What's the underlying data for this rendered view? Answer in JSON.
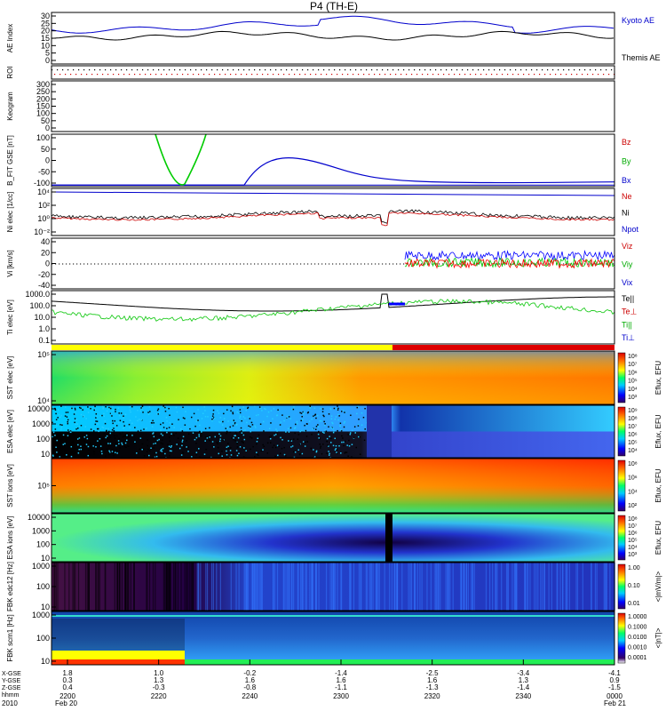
{
  "title": "P4 (TH-E)",
  "year_label": "2010",
  "x_axis": {
    "ticks": [
      "2200",
      "2220",
      "2240",
      "2300",
      "2320",
      "2340",
      "0000"
    ],
    "dates": {
      "first": "Feb 20",
      "last": "Feb 21"
    },
    "row_labels": [
      "X-GSE",
      "Y-GSE",
      "Z-GSE",
      "hhmm"
    ],
    "coords": [
      [
        "1.8",
        "0.3",
        "0.4"
      ],
      [
        "1.0",
        "1.3",
        "-0.3"
      ],
      [
        "-0.2",
        "1.6",
        "-0.8"
      ],
      [
        "-1.4",
        "1.6",
        "-1.1"
      ],
      [
        "-2.5",
        "1.6",
        "-1.3"
      ],
      [
        "-3.4",
        "1.3",
        "-1.4"
      ],
      [
        "-4.1",
        "0.9",
        "-1.5"
      ]
    ]
  },
  "panels": [
    {
      "id": "ae",
      "ylabel": "AE Index",
      "yticks": [
        "30",
        "25",
        "20",
        "15",
        "10",
        "5",
        "0"
      ],
      "legend": [
        {
          "text": "Kyoto AE",
          "color": "#0000cc"
        },
        {
          "text": "Themis AE",
          "color": "#000000"
        }
      ]
    },
    {
      "id": "roi",
      "ylabel": "ROI",
      "yticks": []
    },
    {
      "id": "keogram",
      "ylabel": "Keogram",
      "yticks": [
        "300",
        "250",
        "200",
        "150",
        "100",
        "50",
        "0"
      ]
    },
    {
      "id": "bfit",
      "ylabel": "B_FIT GSE [nT]",
      "yticks": [
        "100",
        "50",
        "0",
        "-50",
        "-100"
      ],
      "legend": [
        {
          "text": "Bz",
          "color": "#cc0000"
        },
        {
          "text": "By",
          "color": "#00aa00"
        },
        {
          "text": "Bx",
          "color": "#0000cc"
        }
      ]
    },
    {
      "id": "ni",
      "ylabel": "Ni elec [1/cc]",
      "yticks": [
        "10⁴",
        "10²",
        "10⁰",
        "10⁻²"
      ],
      "legend": [
        {
          "text": "Ne",
          "color": "#cc0000"
        },
        {
          "text": "Ni",
          "color": "#000000"
        },
        {
          "text": "Npot",
          "color": "#0000cc"
        }
      ]
    },
    {
      "id": "vi",
      "ylabel": "Vi [km/s]",
      "yticks": [
        "40",
        "20",
        "0",
        "-20",
        "-40"
      ],
      "legend": [
        {
          "text": "Viz",
          "color": "#cc0000"
        },
        {
          "text": "Viy",
          "color": "#00aa00"
        },
        {
          "text": "Vix",
          "color": "#0000cc"
        }
      ]
    },
    {
      "id": "ti",
      "ylabel": "Ti elec [eV]",
      "yticks": [
        "1000.0",
        "100.0",
        "10.0",
        "1.0",
        "0.1"
      ],
      "legend": [
        {
          "text": "Te||",
          "color": "#000000"
        },
        {
          "text": "Te⊥",
          "color": "#cc0000"
        },
        {
          "text": "Ti||",
          "color": "#00aa00"
        },
        {
          "text": "Ti⊥",
          "color": "#0000cc"
        }
      ]
    },
    {
      "id": "sst_e",
      "ylabel": "SST elec [eV]",
      "yticks": [
        "10⁵",
        "10⁴"
      ],
      "cbar": {
        "label": "Eflux, EFU",
        "ticks": [
          "10⁸",
          "10⁷",
          "10⁶",
          "10⁵",
          "10⁴",
          "10³"
        ]
      }
    },
    {
      "id": "esa_e",
      "ylabel": "ESA elec [eV]",
      "yticks": [
        "10000",
        "1000",
        "100",
        "10"
      ],
      "cbar": {
        "label": "Eflux, EFU",
        "ticks": [
          "10⁹",
          "10⁸",
          "10⁷",
          "10⁶",
          "10⁵",
          "10⁴"
        ]
      }
    },
    {
      "id": "sst_i",
      "ylabel": "SST ions [eV]",
      "yticks": [
        "10⁵"
      ],
      "cbar": {
        "label": "Eflux, EFU",
        "ticks": [
          "10⁸",
          "10⁶",
          "10⁴",
          "10²"
        ]
      }
    },
    {
      "id": "esa_i",
      "ylabel": "ESA ions [eV]",
      "yticks": [
        "10000",
        "1000",
        "100",
        "10"
      ],
      "cbar": {
        "label": "Eflux, EFU",
        "ticks": [
          "10⁸",
          "10⁷",
          "10⁶",
          "10⁵",
          "10⁴",
          "10³"
        ]
      }
    },
    {
      "id": "fbk_e",
      "ylabel": "FBK edc12 [Hz]",
      "yticks": [
        "1000",
        "100",
        "10"
      ],
      "cbar": {
        "label": "<|mV/m|>",
        "ticks": [
          "1.00",
          "0.10",
          "0.01"
        ]
      }
    },
    {
      "id": "fbk_b",
      "ylabel": "FBK scm1 [Hz]",
      "yticks": [
        "1000",
        "100",
        "10"
      ],
      "cbar": {
        "label": "<|nT|>",
        "ticks": [
          "1.0000",
          "0.1000",
          "0.0100",
          "0.0010",
          "0.0001"
        ]
      }
    }
  ]
}
